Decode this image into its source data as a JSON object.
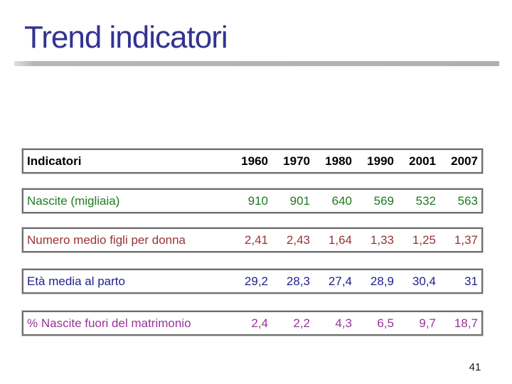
{
  "slide": {
    "title": "Trend indicatori",
    "page_number": "41"
  },
  "colors": {
    "title": "#333391",
    "header_text": "#000000",
    "divider_bar": "#b0b0b0",
    "table_border": "#6e6e6e",
    "row_nascite": "#1f7a1f",
    "row_figli_donna": "#993333",
    "row_eta_parto": "#1f1f8c",
    "row_fuori_matrimonio": "#993399",
    "page_number": "#1a1a1a"
  },
  "table": {
    "header": {
      "label": "Indicatori",
      "years": [
        "1960",
        "1970",
        "1980",
        "1990",
        "2001",
        "2007"
      ]
    },
    "rows": [
      {
        "label": "Nascite (migliaia)",
        "color": "#1f7a1f",
        "values": [
          "910",
          "901",
          "640",
          "569",
          "532",
          "563"
        ]
      },
      {
        "label": "Numero medio figli per donna",
        "color": "#993333",
        "values": [
          "2,41",
          "2,43",
          "1,64",
          "1,33",
          "1,25",
          "1,37"
        ]
      },
      {
        "label": "Età media al parto",
        "color": "#1f1f8c",
        "values": [
          "29,2",
          "28,3",
          "27,4",
          "28,9",
          "30,4",
          "31"
        ]
      },
      {
        "label": "% Nascite fuori del matrimonio",
        "color": "#993399",
        "values": [
          "2,4",
          "2,2",
          "4,3",
          "6,5",
          "9,7",
          "18,7"
        ]
      }
    ]
  }
}
